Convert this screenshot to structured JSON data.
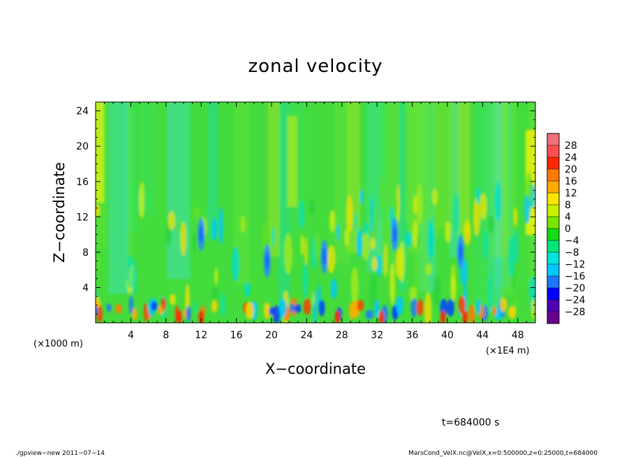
{
  "chart_data": {
    "type": "heatmap",
    "title": "zonal velocity",
    "xlabel": "X−coordinate",
    "ylabel": "Z−coordinate",
    "x_unit": "(×1E4 m)",
    "y_unit": "(×1000 m)",
    "xlim": [
      0,
      50
    ],
    "ylim": [
      0,
      25
    ],
    "x_ticks": [
      4,
      8,
      12,
      16,
      20,
      24,
      28,
      32,
      36,
      40,
      44,
      48
    ],
    "y_ticks": [
      4,
      8,
      12,
      16,
      20,
      24
    ],
    "colorbar": {
      "levels": [
        28,
        24,
        20,
        16,
        12,
        8,
        4,
        0,
        -4,
        -8,
        -12,
        -16,
        -20,
        -24,
        -28
      ],
      "labels": [
        "28",
        "24",
        "20",
        "16",
        "12",
        "8",
        "4",
        "0",
        "−4",
        "−8",
        "−12",
        "−16",
        "−20",
        "−24",
        "−28"
      ],
      "colors": [
        "#f0707c",
        "#ff5050",
        "#ff2800",
        "#ff7a00",
        "#ffaa00",
        "#ffe600",
        "#c8f000",
        "#78e600",
        "#14dc14",
        "#00e678",
        "#00e6dc",
        "#00c8ff",
        "#1e78ff",
        "#0000ff",
        "#5000b4",
        "#6a0090"
      ]
    },
    "time_label": "t=684000 s"
  },
  "footer": {
    "left": "./gpview−new   2011−07−14",
    "right": "MarsCond_VelX.nc@VelX,x=0:500000,z=0:25000,t=684000"
  }
}
